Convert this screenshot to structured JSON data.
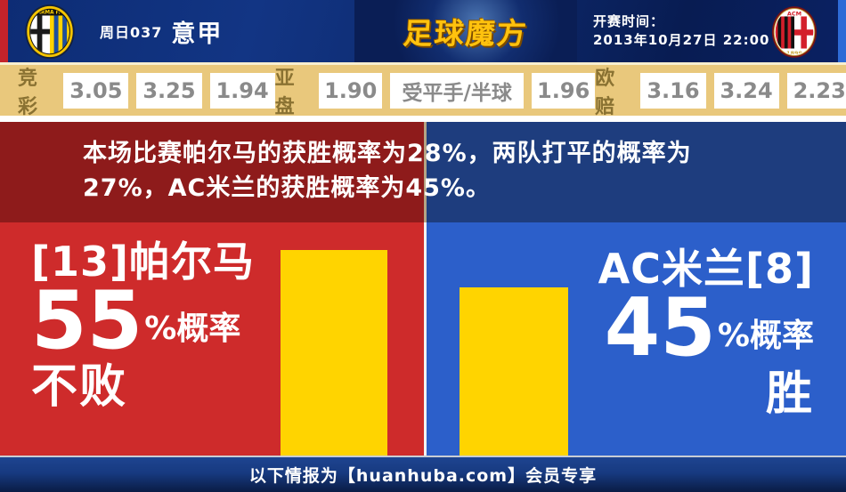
{
  "header": {
    "weekday_number": "周日037",
    "league": "意甲",
    "brand": "足球魔方",
    "kickoff_label": "开赛时间：",
    "kickoff_datetime": "2013年10月27日 22:00",
    "parma_crest_text": "PARMA F.C.",
    "milan_crest_text": "ACM",
    "milan_crest_year": "1899"
  },
  "odds_bar": {
    "groups": [
      {
        "label": "竞彩",
        "values": [
          "3.05",
          "3.25",
          "1.94"
        ]
      },
      {
        "label": "亚盘",
        "values": [
          "1.90",
          "受平手/半球",
          "1.96"
        ]
      },
      {
        "label": "欧赔",
        "values": [
          "3.16",
          "3.24",
          "2.23"
        ]
      }
    ]
  },
  "summary": {
    "line1": "本场比赛帕尔马的获胜概率为28%，两队打平的概率为",
    "line2": "27%，AC米兰的获胜概率为45%。",
    "home_win_percent": 28,
    "draw_percent": 27,
    "away_win_percent": 45
  },
  "prediction": {
    "home": {
      "team": "[13]帕尔马",
      "percent": "55",
      "suffix": "%概率",
      "outcome": "不败"
    },
    "away": {
      "team": "AC米兰[8]",
      "percent": "45",
      "suffix": "%概率",
      "outcome": "胜"
    }
  },
  "chart_data": {
    "type": "bar",
    "categories": [
      "[13]帕尔马 不败",
      "AC米兰[8] 胜"
    ],
    "values": [
      55,
      45
    ],
    "unit": "%",
    "bar_color": "#ffd400",
    "legend": "none",
    "axes": "none"
  },
  "footer": {
    "text": "以下情报为【huanhuba.com】会员专享"
  },
  "colors": {
    "accent_red": "#ce2b2b",
    "accent_blue": "#2c5fca",
    "dark_red": "#8e1b1b",
    "dark_blue": "#1e3d7e",
    "bar_yellow": "#ffd400",
    "odds_tan": "#e9c87c",
    "brand_gold": "#ffc20e"
  }
}
